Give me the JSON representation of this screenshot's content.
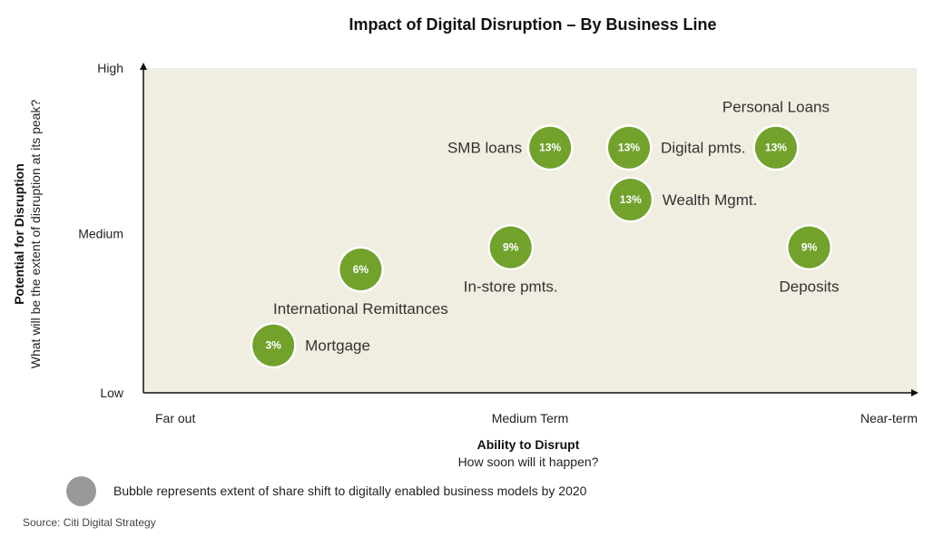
{
  "title": "Impact of Digital Disruption – By Business Line",
  "colors": {
    "plot_bg": "#f0ede1",
    "bubble": "#72a22c",
    "legend_bubble": "#999999"
  },
  "chart_data": {
    "type": "scatter",
    "title": "Impact of Digital Disruption – By Business Line",
    "xlabel": "Ability to Disrupt",
    "xsublabel": "How soon will it happen?",
    "ylabel": "Potential for Disruption",
    "ysublabel": "What will be the extent of disruption at its peak?",
    "xlim": [
      0,
      100
    ],
    "ylim": [
      0,
      100
    ],
    "x_ticks": [
      {
        "value": 0,
        "label": "Far out"
      },
      {
        "value": 50,
        "label": "Medium Term"
      },
      {
        "value": 100,
        "label": "Near-term"
      }
    ],
    "y_ticks": [
      {
        "value": 0,
        "label": "Low"
      },
      {
        "value": 49,
        "label": "Medium"
      },
      {
        "value": 100,
        "label": "High"
      }
    ],
    "points": [
      {
        "name": "Mortgage",
        "bubble_label": "3%",
        "value": 3,
        "x": 16.8,
        "y": 14.6,
        "label_pos": "right"
      },
      {
        "name": "International Remittances",
        "bubble_label": "6%",
        "value": 6,
        "x": 28.1,
        "y": 38.0,
        "label_pos": "below"
      },
      {
        "name": "In-store pmts.",
        "bubble_label": "9%",
        "value": 9,
        "x": 47.5,
        "y": 44.8,
        "label_pos": "below"
      },
      {
        "name": "SMB loans",
        "bubble_label": "13%",
        "value": 13,
        "x": 52.6,
        "y": 75.5,
        "label_pos": "left"
      },
      {
        "name": "Digital pmts.",
        "bubble_label": "13%",
        "value": 13,
        "x": 62.8,
        "y": 75.5,
        "label_pos": "right"
      },
      {
        "name": "Wealth Mgmt.",
        "bubble_label": "13%",
        "value": 13,
        "x": 63.0,
        "y": 59.5,
        "label_pos": "right"
      },
      {
        "name": "Personal Loans",
        "bubble_label": "13%",
        "value": 13,
        "x": 81.8,
        "y": 75.5,
        "label_pos": "above"
      },
      {
        "name": "Deposits",
        "bubble_label": "9%",
        "value": 9,
        "x": 86.1,
        "y": 44.8,
        "label_pos": "below"
      }
    ]
  },
  "legend": {
    "text": "Bubble represents extent of share shift to digitally enabled business models by 2020"
  },
  "source": "Source: Citi Digital Strategy"
}
